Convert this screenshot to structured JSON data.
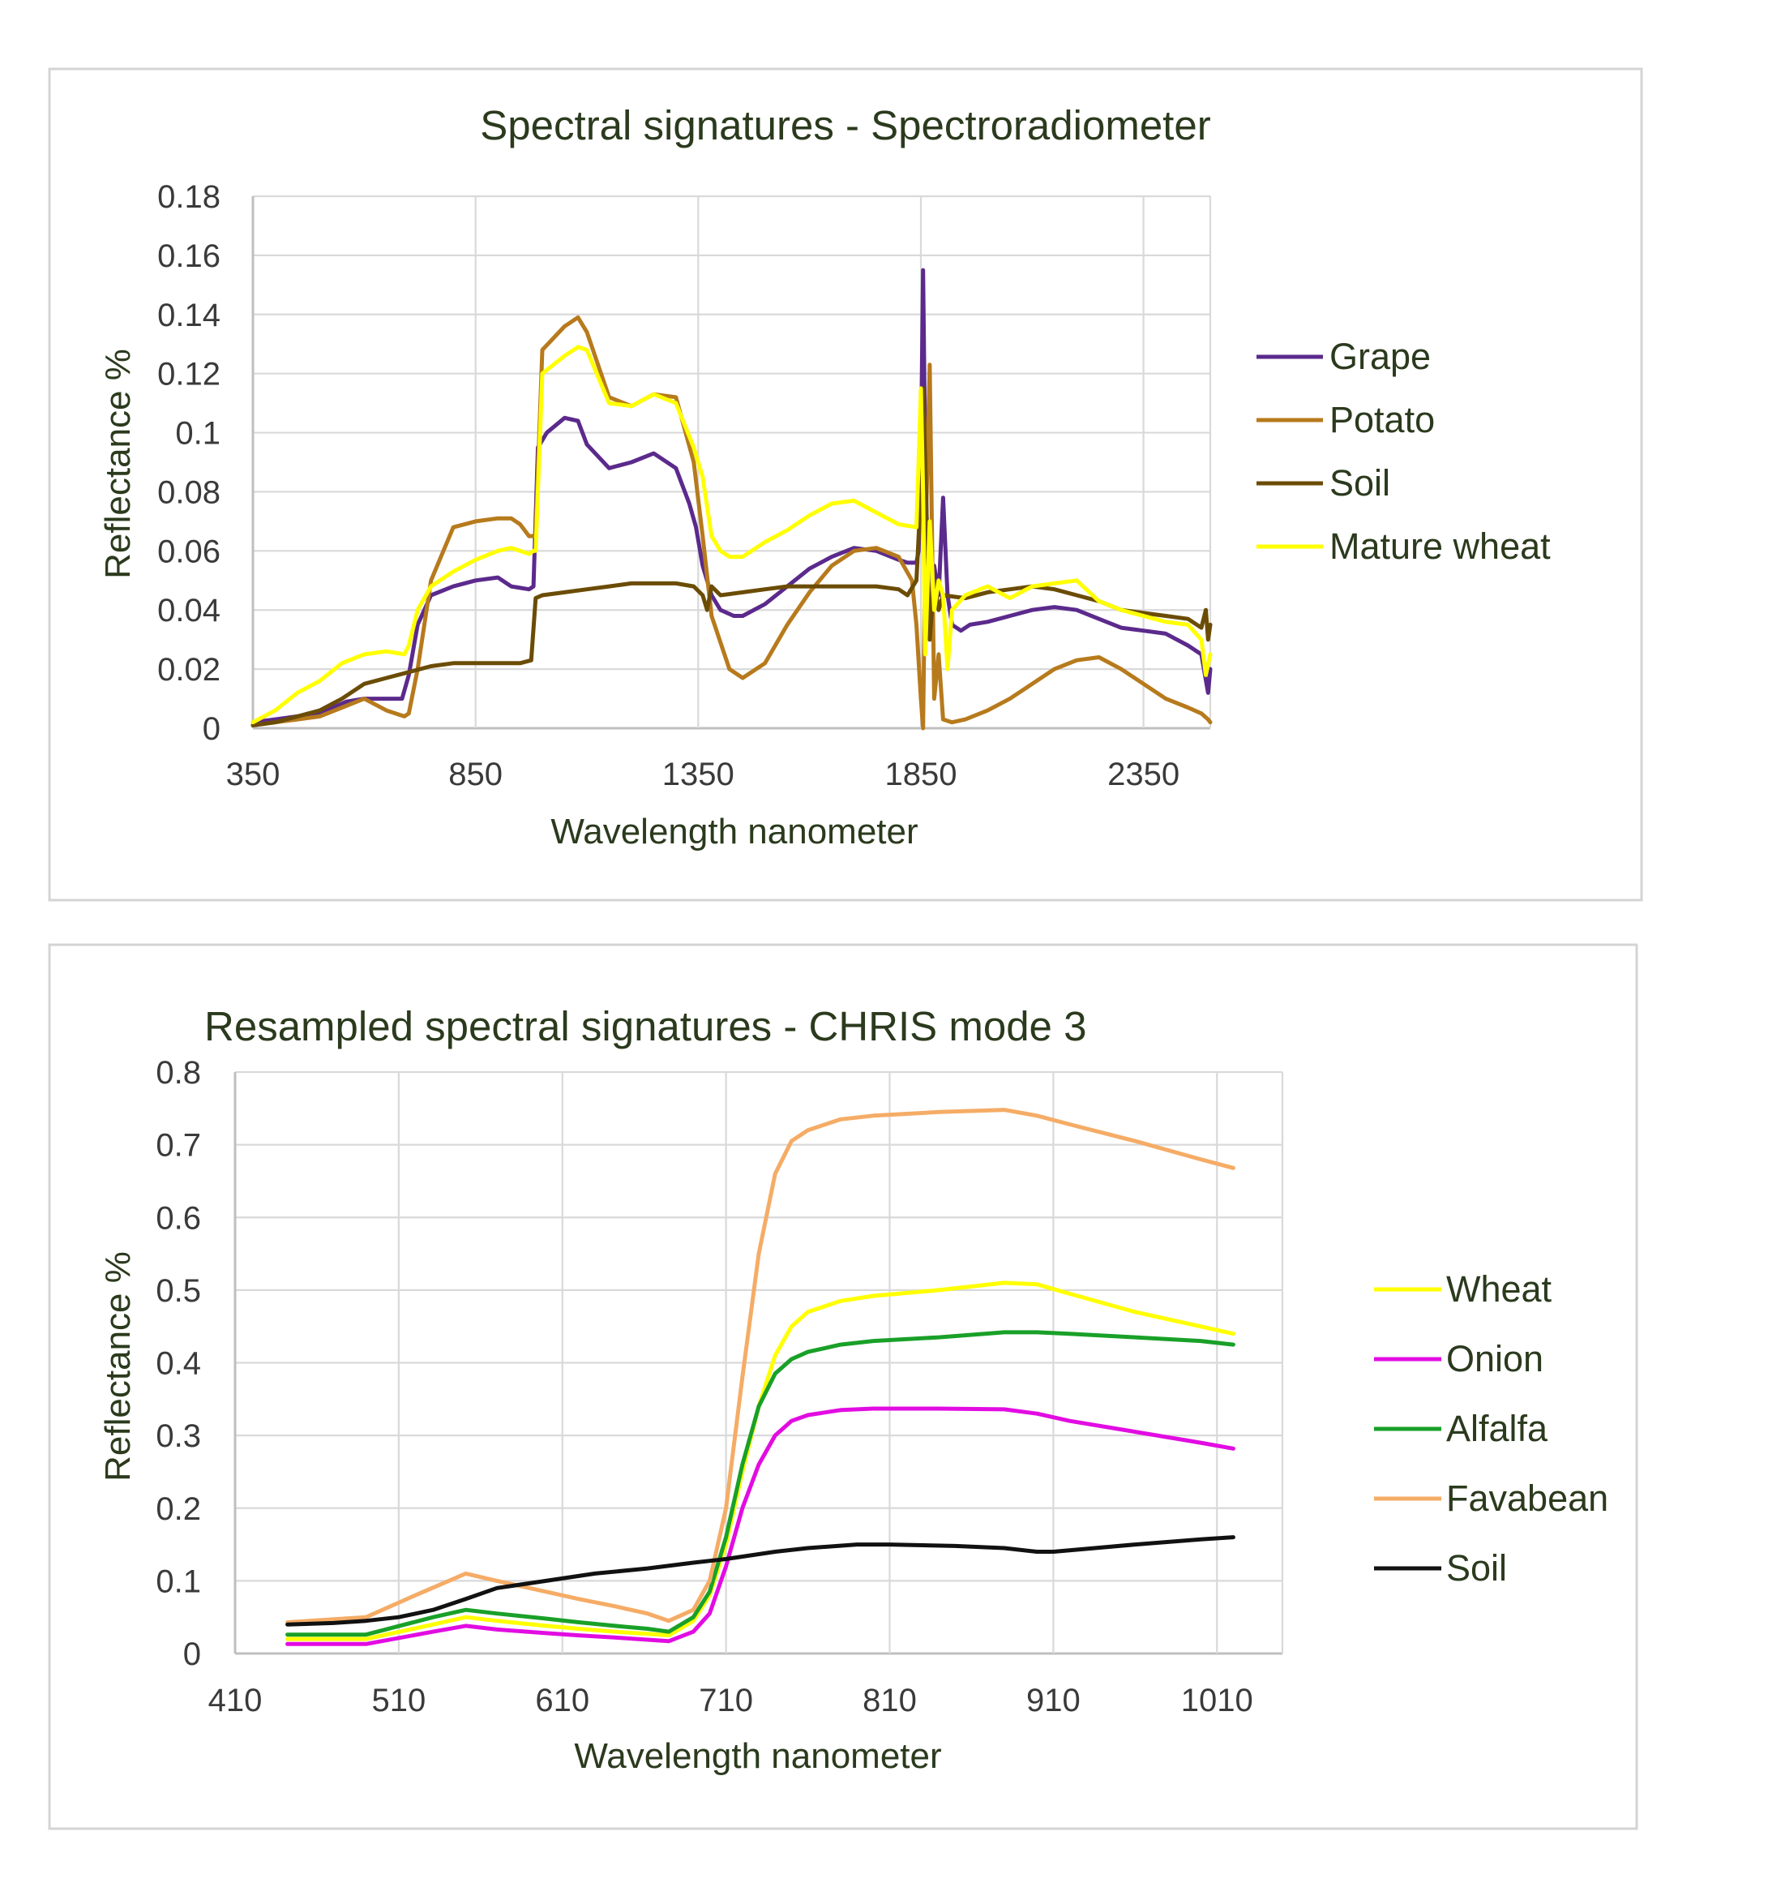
{
  "chart_data": [
    {
      "type": "line",
      "title": "Spectral signatures - Spectroradiometer",
      "xlabel": "Wavelength nanometer",
      "ylabel": "Reflectance %",
      "xlim": [
        350,
        2500
      ],
      "ylim": [
        0,
        0.18
      ],
      "xticks": [
        350,
        850,
        1350,
        1850,
        2350
      ],
      "xtick_labels": [
        "350",
        "850",
        "1350",
        "1850",
        "2350"
      ],
      "yticks": [
        0,
        0.02,
        0.04,
        0.06,
        0.08,
        0.1,
        0.12,
        0.14,
        0.16,
        0.18
      ],
      "ytick_labels": [
        "0",
        "0.02",
        "0.04",
        "0.06",
        "0.08",
        "0.1",
        "0.12",
        "0.14",
        "0.16",
        "0.18"
      ],
      "grid": true,
      "legend_position": "right",
      "series": [
        {
          "name": "Grape",
          "color": "#5b2a8c",
          "x": [
            350,
            400,
            450,
            500,
            560,
            600,
            650,
            685,
            700,
            720,
            750,
            800,
            850,
            900,
            930,
            970,
            980,
            990,
            1010,
            1050,
            1080,
            1100,
            1150,
            1200,
            1250,
            1300,
            1330,
            1345,
            1360,
            1380,
            1400,
            1430,
            1450,
            1500,
            1550,
            1600,
            1650,
            1700,
            1750,
            1800,
            1820,
            1840,
            1845,
            1850,
            1855,
            1860,
            1870,
            1880,
            1890,
            1900,
            1910,
            1920,
            1940,
            1960,
            2000,
            2050,
            2100,
            2150,
            2200,
            2250,
            2300,
            2350,
            2400,
            2450,
            2480,
            2495,
            2500
          ],
          "y": [
            0.002,
            0.003,
            0.004,
            0.005,
            0.009,
            0.01,
            0.01,
            0.01,
            0.018,
            0.035,
            0.045,
            0.048,
            0.05,
            0.051,
            0.048,
            0.047,
            0.048,
            0.095,
            0.1,
            0.105,
            0.104,
            0.096,
            0.088,
            0.09,
            0.093,
            0.088,
            0.076,
            0.068,
            0.055,
            0.045,
            0.04,
            0.038,
            0.038,
            0.042,
            0.048,
            0.054,
            0.058,
            0.061,
            0.06,
            0.057,
            0.056,
            0.056,
            0.06,
            0.09,
            0.155,
            0.09,
            0.03,
            0.055,
            0.045,
            0.078,
            0.045,
            0.035,
            0.033,
            0.035,
            0.036,
            0.038,
            0.04,
            0.041,
            0.04,
            0.037,
            0.034,
            0.033,
            0.032,
            0.028,
            0.025,
            0.012,
            0.02
          ]
        },
        {
          "name": "Potato",
          "color": "#b77a1c",
          "x": [
            350,
            400,
            450,
            500,
            550,
            600,
            650,
            690,
            700,
            720,
            750,
            800,
            850,
            900,
            930,
            950,
            970,
            980,
            985,
            1000,
            1050,
            1080,
            1100,
            1150,
            1200,
            1250,
            1300,
            1340,
            1360,
            1380,
            1420,
            1450,
            1500,
            1550,
            1600,
            1650,
            1700,
            1750,
            1800,
            1830,
            1840,
            1850,
            1855,
            1860,
            1870,
            1880,
            1890,
            1900,
            1920,
            1950,
            2000,
            2050,
            2100,
            2150,
            2200,
            2250,
            2300,
            2350,
            2400,
            2450,
            2480,
            2495,
            2500
          ],
          "y": [
            0.001,
            0.002,
            0.003,
            0.004,
            0.007,
            0.01,
            0.006,
            0.004,
            0.005,
            0.02,
            0.05,
            0.068,
            0.07,
            0.071,
            0.071,
            0.069,
            0.065,
            0.065,
            0.066,
            0.128,
            0.136,
            0.139,
            0.134,
            0.112,
            0.109,
            0.113,
            0.112,
            0.09,
            0.065,
            0.038,
            0.02,
            0.017,
            0.022,
            0.035,
            0.046,
            0.055,
            0.06,
            0.061,
            0.058,
            0.05,
            0.035,
            0.01,
            0.0,
            0.06,
            0.123,
            0.01,
            0.025,
            0.003,
            0.002,
            0.003,
            0.006,
            0.01,
            0.015,
            0.02,
            0.023,
            0.024,
            0.02,
            0.015,
            0.01,
            0.007,
            0.005,
            0.003,
            0.002
          ]
        },
        {
          "name": "Soil",
          "color": "#6b4c05",
          "x": [
            350,
            400,
            450,
            500,
            550,
            600,
            650,
            700,
            750,
            800,
            850,
            900,
            950,
            975,
            985,
            1000,
            1050,
            1100,
            1150,
            1200,
            1250,
            1300,
            1340,
            1360,
            1370,
            1380,
            1400,
            1450,
            1500,
            1550,
            1600,
            1650,
            1700,
            1750,
            1800,
            1820,
            1840,
            1850,
            1855,
            1860,
            1870,
            1880,
            1890,
            1900,
            1950,
            2000,
            2050,
            2100,
            2150,
            2200,
            2250,
            2300,
            2350,
            2400,
            2450,
            2480,
            2490,
            2495,
            2500
          ],
          "y": [
            0.001,
            0.002,
            0.004,
            0.006,
            0.01,
            0.015,
            0.017,
            0.019,
            0.021,
            0.022,
            0.022,
            0.022,
            0.022,
            0.023,
            0.044,
            0.045,
            0.046,
            0.047,
            0.048,
            0.049,
            0.049,
            0.049,
            0.048,
            0.045,
            0.04,
            0.048,
            0.045,
            0.046,
            0.047,
            0.048,
            0.048,
            0.048,
            0.048,
            0.048,
            0.047,
            0.045,
            0.05,
            0.08,
            0.115,
            0.09,
            0.03,
            0.05,
            0.04,
            0.045,
            0.044,
            0.046,
            0.047,
            0.048,
            0.047,
            0.045,
            0.043,
            0.04,
            0.039,
            0.038,
            0.037,
            0.034,
            0.04,
            0.03,
            0.035
          ]
        },
        {
          "name": "Mature wheat",
          "color": "#ffff00",
          "x": [
            350,
            400,
            450,
            500,
            550,
            600,
            650,
            690,
            700,
            720,
            750,
            800,
            850,
            900,
            930,
            950,
            970,
            980,
            985,
            1000,
            1050,
            1080,
            1100,
            1150,
            1200,
            1250,
            1300,
            1340,
            1360,
            1380,
            1400,
            1420,
            1450,
            1500,
            1550,
            1600,
            1650,
            1700,
            1750,
            1800,
            1840,
            1845,
            1850,
            1855,
            1860,
            1870,
            1880,
            1890,
            1900,
            1910,
            1920,
            1950,
            2000,
            2050,
            2100,
            2150,
            2200,
            2250,
            2300,
            2350,
            2400,
            2450,
            2480,
            2490,
            2500
          ],
          "y": [
            0.002,
            0.006,
            0.012,
            0.016,
            0.022,
            0.025,
            0.026,
            0.025,
            0.028,
            0.04,
            0.048,
            0.053,
            0.057,
            0.06,
            0.061,
            0.06,
            0.059,
            0.06,
            0.06,
            0.12,
            0.126,
            0.129,
            0.128,
            0.11,
            0.109,
            0.113,
            0.11,
            0.095,
            0.085,
            0.065,
            0.06,
            0.058,
            0.058,
            0.063,
            0.067,
            0.072,
            0.076,
            0.077,
            0.073,
            0.069,
            0.068,
            0.09,
            0.115,
            0.08,
            0.025,
            0.07,
            0.04,
            0.05,
            0.045,
            0.02,
            0.04,
            0.045,
            0.048,
            0.044,
            0.048,
            0.049,
            0.05,
            0.043,
            0.04,
            0.038,
            0.036,
            0.035,
            0.03,
            0.018,
            0.025
          ]
        }
      ]
    },
    {
      "type": "line",
      "title": "Resampled spectral signatures - CHRIS mode 3",
      "xlabel": "Wavelength  nanometer",
      "ylabel": "Reflectance %",
      "xlim": [
        410,
        1050
      ],
      "ylim": [
        0,
        0.8
      ],
      "xticks": [
        410,
        510,
        610,
        710,
        810,
        910,
        1010
      ],
      "xtick_labels": [
        "410",
        "510",
        "610",
        "710",
        "810",
        "910",
        "1010"
      ],
      "yticks": [
        0,
        0.1,
        0.2,
        0.3,
        0.4,
        0.5,
        0.6,
        0.7,
        0.8
      ],
      "ytick_labels": [
        "0",
        "0.1",
        "0.2",
        "0.3",
        "0.4",
        "0.5",
        "0.6",
        "0.7",
        "0.8"
      ],
      "grid": true,
      "legend_position": "right",
      "series": [
        {
          "name": "Wheat",
          "color": "#ffff00",
          "x": [
            442,
            490,
            531,
            551,
            570,
            600,
            620,
            642,
            662,
            675,
            690,
            700,
            710,
            720,
            730,
            740,
            750,
            760,
            780,
            800,
            840,
            880,
            900,
            920,
            960,
            1000,
            1020
          ],
          "y": [
            0.02,
            0.02,
            0.04,
            0.05,
            0.045,
            0.038,
            0.034,
            0.03,
            0.027,
            0.025,
            0.045,
            0.08,
            0.15,
            0.25,
            0.34,
            0.41,
            0.45,
            0.47,
            0.485,
            0.492,
            0.5,
            0.51,
            0.508,
            0.495,
            0.47,
            0.45,
            0.44
          ]
        },
        {
          "name": "Onion",
          "color": "#e20ce2",
          "x": [
            442,
            490,
            531,
            551,
            570,
            600,
            620,
            642,
            662,
            675,
            690,
            700,
            710,
            720,
            730,
            740,
            750,
            760,
            780,
            800,
            840,
            880,
            900,
            920,
            960,
            1000,
            1020
          ],
          "y": [
            0.013,
            0.013,
            0.03,
            0.038,
            0.033,
            0.028,
            0.025,
            0.022,
            0.019,
            0.017,
            0.03,
            0.055,
            0.12,
            0.2,
            0.26,
            0.3,
            0.32,
            0.328,
            0.335,
            0.337,
            0.337,
            0.336,
            0.33,
            0.32,
            0.305,
            0.29,
            0.282
          ]
        },
        {
          "name": "Alfalfa",
          "color": "#19a028",
          "x": [
            442,
            490,
            531,
            551,
            570,
            600,
            620,
            642,
            662,
            675,
            690,
            700,
            710,
            720,
            730,
            740,
            750,
            760,
            780,
            800,
            840,
            880,
            900,
            920,
            960,
            1000,
            1020
          ],
          "y": [
            0.026,
            0.026,
            0.05,
            0.06,
            0.055,
            0.048,
            0.043,
            0.038,
            0.034,
            0.03,
            0.05,
            0.085,
            0.16,
            0.26,
            0.34,
            0.385,
            0.405,
            0.415,
            0.425,
            0.43,
            0.435,
            0.442,
            0.442,
            0.44,
            0.435,
            0.43,
            0.425
          ]
        },
        {
          "name": "Favabean",
          "color": "#f5ac66",
          "x": [
            442,
            490,
            520,
            551,
            570,
            600,
            620,
            642,
            662,
            675,
            690,
            700,
            710,
            720,
            730,
            740,
            750,
            760,
            780,
            800,
            840,
            880,
            900,
            920,
            960,
            1000,
            1020
          ],
          "y": [
            0.043,
            0.05,
            0.08,
            0.11,
            0.1,
            0.085,
            0.075,
            0.065,
            0.055,
            0.045,
            0.06,
            0.1,
            0.2,
            0.38,
            0.55,
            0.66,
            0.705,
            0.72,
            0.735,
            0.74,
            0.745,
            0.748,
            0.74,
            0.728,
            0.705,
            0.68,
            0.668
          ]
        },
        {
          "name": "Soil",
          "color": "#111111",
          "x": [
            442,
            470,
            490,
            510,
            531,
            551,
            570,
            600,
            630,
            662,
            690,
            710,
            740,
            760,
            790,
            810,
            850,
            880,
            900,
            910,
            960,
            1000,
            1020
          ],
          "y": [
            0.04,
            0.042,
            0.045,
            0.05,
            0.06,
            0.075,
            0.09,
            0.1,
            0.11,
            0.117,
            0.125,
            0.13,
            0.14,
            0.145,
            0.15,
            0.15,
            0.148,
            0.145,
            0.14,
            0.14,
            0.15,
            0.157,
            0.16
          ]
        }
      ]
    }
  ]
}
